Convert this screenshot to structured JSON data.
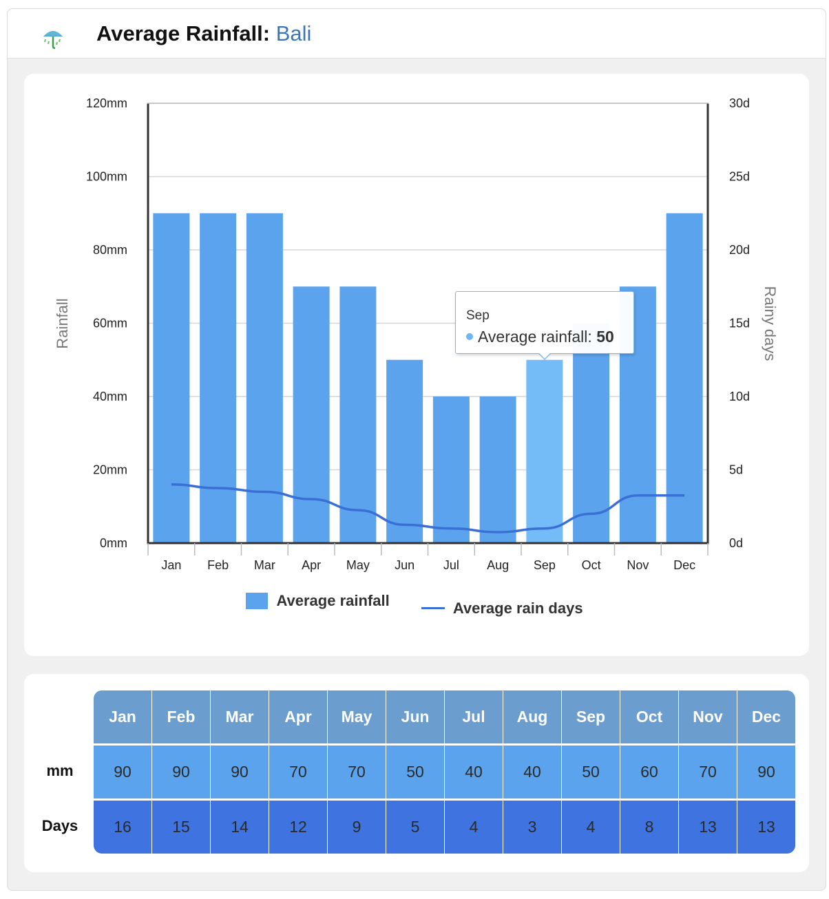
{
  "header": {
    "title_prefix": "Average Rainfall:",
    "title_place": "Bali",
    "icon": "umbrella-rain-icon"
  },
  "colors": {
    "bar": "#5ba3ec",
    "bar_highlight": "#74bcf7",
    "line": "#3a6fd6",
    "table_head": "#6b9dcf",
    "table_mm": "#5ba3ec",
    "table_days": "#3f73df",
    "title_place": "#3d75b8"
  },
  "chart_data": {
    "type": "bar",
    "categories": [
      "Jan",
      "Feb",
      "Mar",
      "Apr",
      "May",
      "Jun",
      "Jul",
      "Aug",
      "Sep",
      "Oct",
      "Nov",
      "Dec"
    ],
    "series": [
      {
        "name": "Average rainfall",
        "type": "bar",
        "axis": "left",
        "values": [
          90,
          90,
          90,
          70,
          70,
          50,
          40,
          40,
          50,
          60,
          70,
          90
        ]
      },
      {
        "name": "Average rain days",
        "type": "line",
        "axis": "right",
        "values": [
          16,
          15,
          14,
          12,
          9,
          5,
          4,
          3,
          4,
          8,
          13,
          13
        ]
      }
    ],
    "ylabel": "Rainfall",
    "ylabel_right": "Rainy days",
    "ylim": [
      0,
      120
    ],
    "ylim_right": [
      0,
      120
    ],
    "yticks": [
      "0mm",
      "20mm",
      "40mm",
      "60mm",
      "80mm",
      "100mm",
      "120mm"
    ],
    "yticks_right": [
      "0d",
      "5d",
      "10d",
      "15d",
      "20d",
      "25d",
      "30d"
    ],
    "grid": true,
    "legend": "bottom-center",
    "highlighted_category": "Sep"
  },
  "tooltip": {
    "month": "Sep",
    "series_label": "Average rainfall:",
    "value": "50"
  },
  "legend": {
    "bar_label": "Average rainfall",
    "line_label": "Average rain days"
  },
  "table": {
    "months": [
      "Jan",
      "Feb",
      "Mar",
      "Apr",
      "May",
      "Jun",
      "Jul",
      "Aug",
      "Sep",
      "Oct",
      "Nov",
      "Dec"
    ],
    "mm_label": "mm",
    "days_label": "Days",
    "mm": [
      "90",
      "90",
      "90",
      "70",
      "70",
      "50",
      "40",
      "40",
      "50",
      "60",
      "70",
      "90"
    ],
    "days": [
      "16",
      "15",
      "14",
      "12",
      "9",
      "5",
      "4",
      "3",
      "4",
      "8",
      "13",
      "13"
    ]
  }
}
